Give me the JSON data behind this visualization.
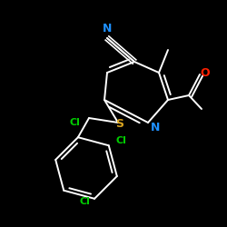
{
  "background_color": "#000000",
  "atom_colors": {
    "N": "#1E90FF",
    "Cl": "#00CC00",
    "S": "#DAA520",
    "O": "#FF2000"
  },
  "figsize": [
    2.5,
    2.5
  ],
  "dpi": 100
}
